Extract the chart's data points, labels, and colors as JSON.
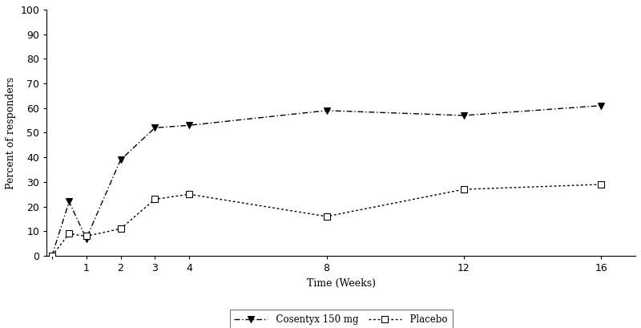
{
  "cosentyx_x": [
    0,
    0.5,
    1,
    2,
    3,
    4,
    8,
    12,
    16
  ],
  "cosentyx_y": [
    0,
    22,
    7,
    39,
    52,
    53,
    59,
    57,
    61
  ],
  "placebo_x": [
    0,
    0.5,
    1,
    2,
    3,
    4,
    8,
    12,
    16
  ],
  "placebo_y": [
    0,
    9,
    8,
    11,
    23,
    25,
    16,
    27,
    29
  ],
  "xlabel": "Time (Weeks)",
  "ylabel": "Percent of responders",
  "ylim": [
    0,
    100
  ],
  "xlim": [
    -0.15,
    17
  ],
  "yticks": [
    0,
    10,
    20,
    30,
    40,
    50,
    60,
    70,
    80,
    90,
    100
  ],
  "xticks": [
    0,
    1,
    2,
    3,
    4,
    8,
    12,
    16
  ],
  "xtick_labels": [
    "",
    "1",
    "2",
    "3",
    "4",
    "8",
    "12",
    "16"
  ],
  "legend_cosentyx": "  Cosentyx 150 mg",
  "legend_placebo": "  Placebo",
  "line_color": "#000000",
  "background_color": "#ffffff",
  "font_family": "serif"
}
